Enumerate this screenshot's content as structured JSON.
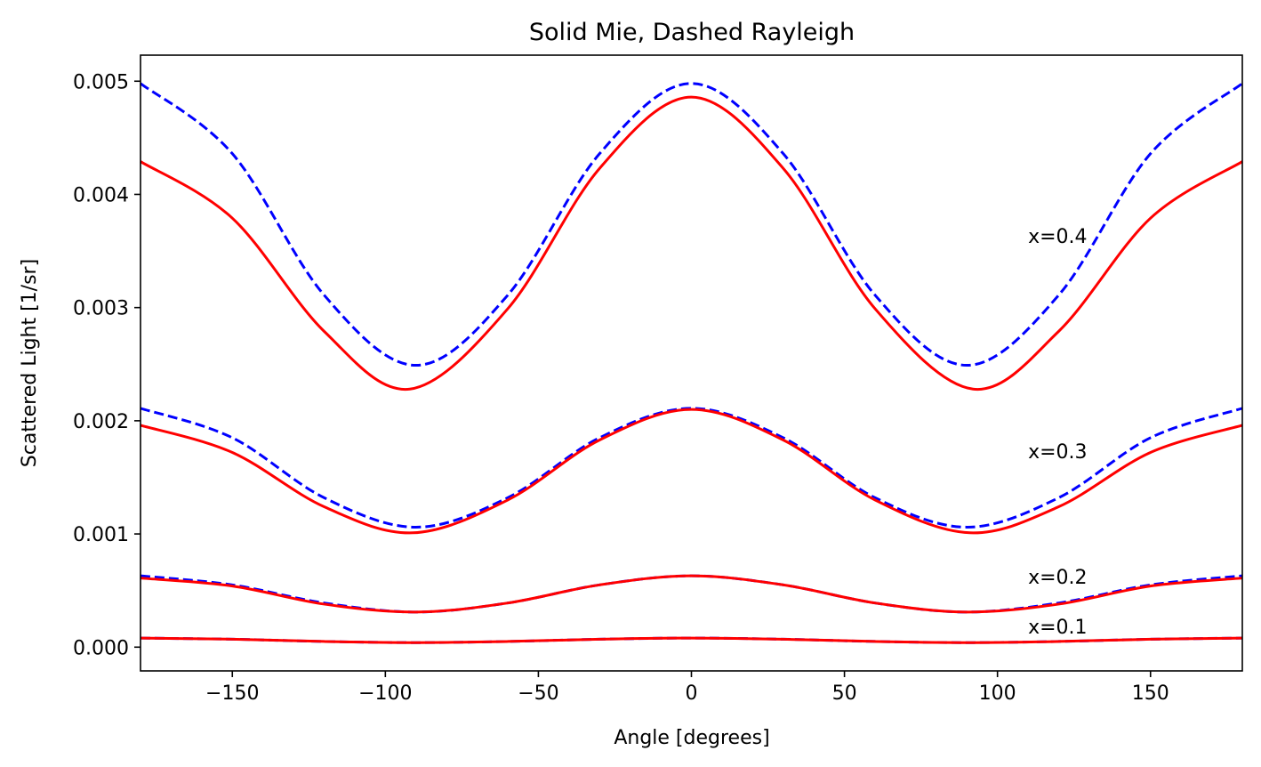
{
  "chart_data": {
    "type": "line",
    "title": "Solid Mie, Dashed Rayleigh",
    "xlabel": "Angle [degrees]",
    "ylabel": "Scattered Light [1/sr]",
    "xlim": [
      -180,
      180
    ],
    "ylim": [
      -0.00021,
      0.00523
    ],
    "xticks": [
      -150,
      -100,
      -50,
      0,
      50,
      100,
      150
    ],
    "xtick_labels": [
      "−150",
      "−100",
      "−50",
      "0",
      "50",
      "100",
      "150"
    ],
    "yticks": [
      0.0,
      0.001,
      0.002,
      0.003,
      0.004,
      0.005
    ],
    "ytick_labels": [
      "0.000",
      "0.001",
      "0.002",
      "0.003",
      "0.004",
      "0.005"
    ],
    "grid": false,
    "legend": "none",
    "annotations": [
      {
        "text": "x=0.4",
        "x": 110,
        "y": 0.00357
      },
      {
        "text": "x=0.3",
        "x": 110,
        "y": 0.00167
      },
      {
        "text": "x=0.2",
        "x": 110,
        "y": 0.00056
      },
      {
        "text": "x=0.1",
        "x": 110,
        "y": 0.00012
      }
    ],
    "series": [
      {
        "size_parameter": 0.4,
        "style": "dashed",
        "color": "#0000ff",
        "x": [
          -180,
          -150,
          -120,
          -90,
          -60,
          -30,
          0,
          30,
          60,
          90,
          120,
          150,
          180
        ],
        "y": [
          0.00498,
          0.00436,
          0.00311,
          0.00249,
          0.00311,
          0.00436,
          0.00498,
          0.00436,
          0.00311,
          0.00249,
          0.00311,
          0.00436,
          0.00498
        ]
      },
      {
        "size_parameter": 0.4,
        "style": "solid",
        "color": "#ff0000",
        "x": [
          -180,
          -150,
          -120,
          -92,
          -60,
          -30,
          0,
          30,
          60,
          92,
          120,
          150,
          180
        ],
        "y": [
          0.00429,
          0.00379,
          0.00279,
          0.00228,
          0.00299,
          0.00423,
          0.00486,
          0.00423,
          0.00299,
          0.00228,
          0.00279,
          0.00379,
          0.00429
        ]
      },
      {
        "size_parameter": 0.3,
        "style": "dashed",
        "color": "#0000ff",
        "x": [
          -180,
          -150,
          -120,
          -90,
          -60,
          -30,
          0,
          30,
          60,
          90,
          120,
          150,
          180
        ],
        "y": [
          0.00211,
          0.00185,
          0.00132,
          0.00106,
          0.00132,
          0.00185,
          0.00211,
          0.00185,
          0.00132,
          0.00106,
          0.00132,
          0.00185,
          0.00211
        ]
      },
      {
        "size_parameter": 0.3,
        "style": "solid",
        "color": "#ff0000",
        "x": [
          -180,
          -150,
          -120,
          -91,
          -60,
          -30,
          0,
          30,
          60,
          91,
          120,
          150,
          180
        ],
        "y": [
          0.00196,
          0.00172,
          0.00124,
          0.00101,
          0.0013,
          0.00183,
          0.0021,
          0.00183,
          0.0013,
          0.00101,
          0.00124,
          0.00172,
          0.00196
        ]
      },
      {
        "size_parameter": 0.2,
        "style": "dashed",
        "color": "#0000ff",
        "x": [
          -180,
          -150,
          -120,
          -90,
          -60,
          -30,
          0,
          30,
          60,
          90,
          120,
          150,
          180
        ],
        "y": [
          0.00063,
          0.00055,
          0.00039,
          0.00031,
          0.00039,
          0.00055,
          0.00063,
          0.00055,
          0.00039,
          0.00031,
          0.00039,
          0.00055,
          0.00063
        ]
      },
      {
        "size_parameter": 0.2,
        "style": "solid",
        "color": "#ff0000",
        "x": [
          -180,
          -150,
          -120,
          -90,
          -60,
          -30,
          0,
          30,
          60,
          90,
          120,
          150,
          180
        ],
        "y": [
          0.00061,
          0.00054,
          0.00038,
          0.00031,
          0.00039,
          0.00055,
          0.00063,
          0.00055,
          0.00039,
          0.00031,
          0.00038,
          0.00054,
          0.00061
        ]
      },
      {
        "size_parameter": 0.1,
        "style": "dashed",
        "color": "#0000ff",
        "x": [
          -180,
          -150,
          -120,
          -90,
          -60,
          -30,
          0,
          30,
          60,
          90,
          120,
          150,
          180
        ],
        "y": [
          8e-05,
          7e-05,
          5e-05,
          4e-05,
          5e-05,
          7e-05,
          8e-05,
          7e-05,
          5e-05,
          4e-05,
          5e-05,
          7e-05,
          8e-05
        ]
      },
      {
        "size_parameter": 0.1,
        "style": "solid",
        "color": "#ff0000",
        "x": [
          -180,
          -150,
          -120,
          -90,
          -60,
          -30,
          0,
          30,
          60,
          90,
          120,
          150,
          180
        ],
        "y": [
          8e-05,
          7e-05,
          5e-05,
          4e-05,
          5e-05,
          7e-05,
          8e-05,
          7e-05,
          5e-05,
          4e-05,
          5e-05,
          7e-05,
          8e-05
        ]
      }
    ]
  }
}
